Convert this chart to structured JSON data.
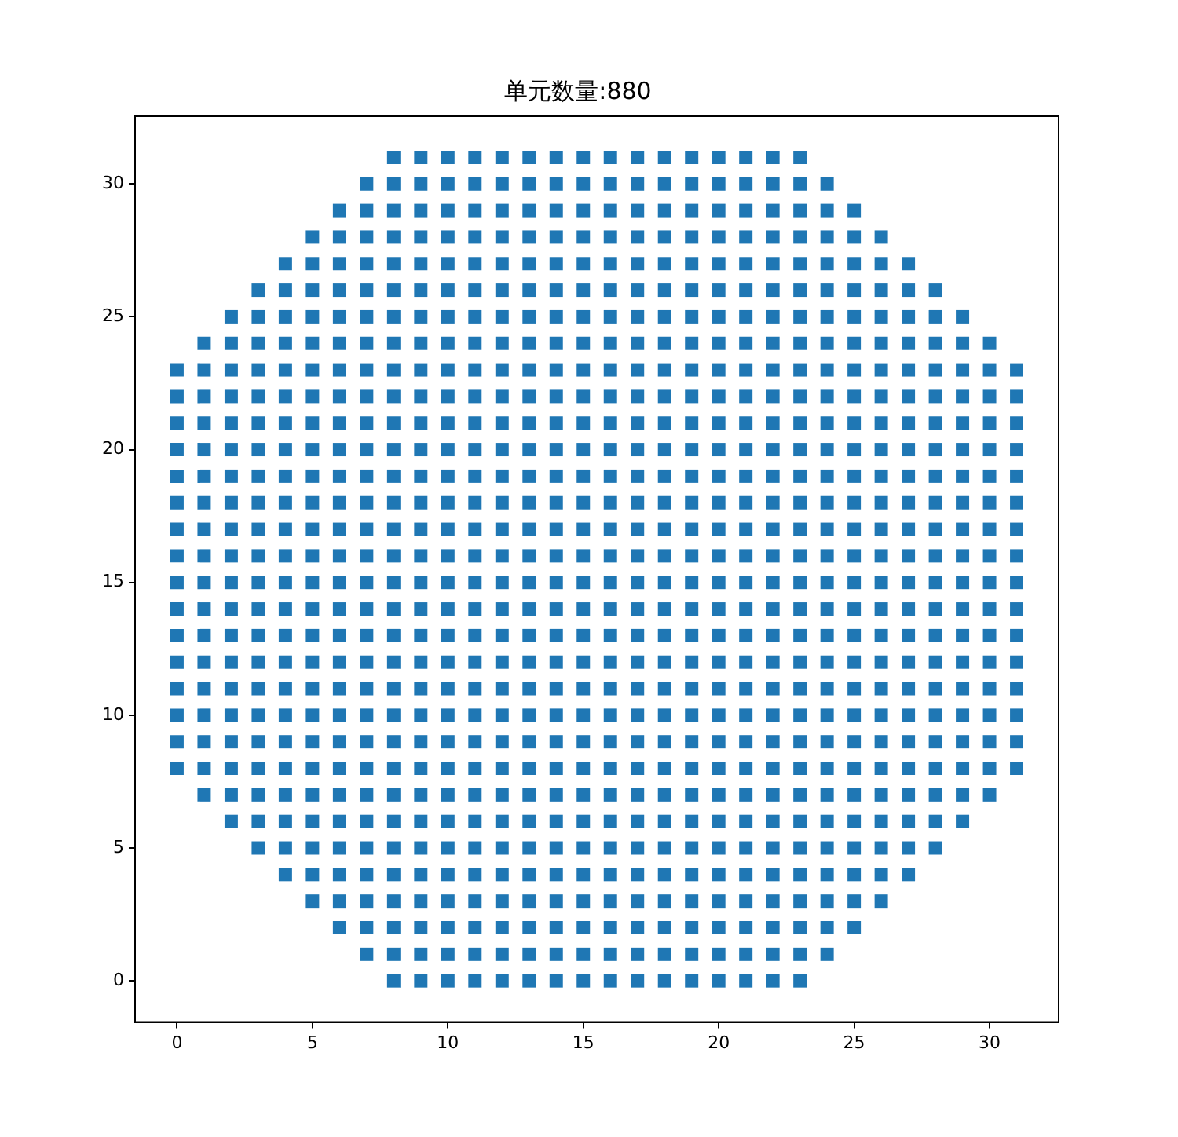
{
  "chart_data": {
    "type": "scatter",
    "title": "单元数量:880",
    "marker": "square",
    "grid": false,
    "legend": false,
    "xlim": [
      -1.55,
      32.55
    ],
    "ylim": [
      -1.55,
      32.55
    ],
    "xticks": [
      0,
      5,
      10,
      15,
      20,
      25,
      30
    ],
    "yticks": [
      0,
      5,
      10,
      15,
      20,
      25,
      30
    ],
    "series": [
      {
        "color": "#1f77b4",
        "x": [
          8,
          9,
          10,
          11,
          12,
          13,
          14,
          15,
          16,
          17,
          18,
          19,
          20,
          21,
          22,
          23
        ],
        "values": [
          0,
          0,
          0,
          0,
          0,
          0,
          0,
          0,
          0,
          0,
          0,
          0,
          0,
          0,
          0,
          0
        ]
      },
      {
        "color": "#1f77b4",
        "x": [
          7,
          8,
          9,
          10,
          11,
          12,
          13,
          14,
          15,
          16,
          17,
          18,
          19,
          20,
          21,
          22,
          23,
          24
        ],
        "values": [
          1,
          1,
          1,
          1,
          1,
          1,
          1,
          1,
          1,
          1,
          1,
          1,
          1,
          1,
          1,
          1,
          1,
          1
        ]
      },
      {
        "color": "#1f77b4",
        "x": [
          6,
          7,
          8,
          9,
          10,
          11,
          12,
          13,
          14,
          15,
          16,
          17,
          18,
          19,
          20,
          21,
          22,
          23,
          24,
          25
        ],
        "values": [
          2,
          2,
          2,
          2,
          2,
          2,
          2,
          2,
          2,
          2,
          2,
          2,
          2,
          2,
          2,
          2,
          2,
          2,
          2,
          2
        ]
      },
      {
        "color": "#1f77b4",
        "x": [
          5,
          6,
          7,
          8,
          9,
          10,
          11,
          12,
          13,
          14,
          15,
          16,
          17,
          18,
          19,
          20,
          21,
          22,
          23,
          24,
          25,
          26
        ],
        "values": [
          3,
          3,
          3,
          3,
          3,
          3,
          3,
          3,
          3,
          3,
          3,
          3,
          3,
          3,
          3,
          3,
          3,
          3,
          3,
          3,
          3,
          3
        ]
      },
      {
        "color": "#1f77b4",
        "x": [
          4,
          5,
          6,
          7,
          8,
          9,
          10,
          11,
          12,
          13,
          14,
          15,
          16,
          17,
          18,
          19,
          20,
          21,
          22,
          23,
          24,
          25,
          26,
          27
        ],
        "values": [
          4,
          4,
          4,
          4,
          4,
          4,
          4,
          4,
          4,
          4,
          4,
          4,
          4,
          4,
          4,
          4,
          4,
          4,
          4,
          4,
          4,
          4,
          4,
          4
        ]
      },
      {
        "color": "#1f77b4",
        "x": [
          3,
          4,
          5,
          6,
          7,
          8,
          9,
          10,
          11,
          12,
          13,
          14,
          15,
          16,
          17,
          18,
          19,
          20,
          21,
          22,
          23,
          24,
          25,
          26,
          27,
          28
        ],
        "values": [
          5,
          5,
          5,
          5,
          5,
          5,
          5,
          5,
          5,
          5,
          5,
          5,
          5,
          5,
          5,
          5,
          5,
          5,
          5,
          5,
          5,
          5,
          5,
          5,
          5,
          5
        ]
      },
      {
        "color": "#1f77b4",
        "x": [
          2,
          3,
          4,
          5,
          6,
          7,
          8,
          9,
          10,
          11,
          12,
          13,
          14,
          15,
          16,
          17,
          18,
          19,
          20,
          21,
          22,
          23,
          24,
          25,
          26,
          27,
          28,
          29
        ],
        "values": [
          6,
          6,
          6,
          6,
          6,
          6,
          6,
          6,
          6,
          6,
          6,
          6,
          6,
          6,
          6,
          6,
          6,
          6,
          6,
          6,
          6,
          6,
          6,
          6,
          6,
          6,
          6,
          6
        ]
      },
      {
        "color": "#1f77b4",
        "x": [
          1,
          2,
          3,
          4,
          5,
          6,
          7,
          8,
          9,
          10,
          11,
          12,
          13,
          14,
          15,
          16,
          17,
          18,
          19,
          20,
          21,
          22,
          23,
          24,
          25,
          26,
          27,
          28,
          29,
          30
        ],
        "values": [
          7,
          7,
          7,
          7,
          7,
          7,
          7,
          7,
          7,
          7,
          7,
          7,
          7,
          7,
          7,
          7,
          7,
          7,
          7,
          7,
          7,
          7,
          7,
          7,
          7,
          7,
          7,
          7,
          7,
          7
        ]
      },
      {
        "color": "#1f77b4",
        "x": [
          0,
          1,
          2,
          3,
          4,
          5,
          6,
          7,
          8,
          9,
          10,
          11,
          12,
          13,
          14,
          15,
          16,
          17,
          18,
          19,
          20,
          21,
          22,
          23,
          24,
          25,
          26,
          27,
          28,
          29,
          30,
          31
        ],
        "values": [
          8,
          8,
          8,
          8,
          8,
          8,
          8,
          8,
          8,
          8,
          8,
          8,
          8,
          8,
          8,
          8,
          8,
          8,
          8,
          8,
          8,
          8,
          8,
          8,
          8,
          8,
          8,
          8,
          8,
          8,
          8,
          8
        ]
      },
      {
        "color": "#1f77b4",
        "x": [
          0,
          1,
          2,
          3,
          4,
          5,
          6,
          7,
          8,
          9,
          10,
          11,
          12,
          13,
          14,
          15,
          16,
          17,
          18,
          19,
          20,
          21,
          22,
          23,
          24,
          25,
          26,
          27,
          28,
          29,
          30,
          31
        ],
        "values": [
          9,
          9,
          9,
          9,
          9,
          9,
          9,
          9,
          9,
          9,
          9,
          9,
          9,
          9,
          9,
          9,
          9,
          9,
          9,
          9,
          9,
          9,
          9,
          9,
          9,
          9,
          9,
          9,
          9,
          9,
          9,
          9
        ]
      },
      {
        "color": "#1f77b4",
        "x": [
          0,
          1,
          2,
          3,
          4,
          5,
          6,
          7,
          8,
          9,
          10,
          11,
          12,
          13,
          14,
          15,
          16,
          17,
          18,
          19,
          20,
          21,
          22,
          23,
          24,
          25,
          26,
          27,
          28,
          29,
          30,
          31
        ],
        "values": [
          10,
          10,
          10,
          10,
          10,
          10,
          10,
          10,
          10,
          10,
          10,
          10,
          10,
          10,
          10,
          10,
          10,
          10,
          10,
          10,
          10,
          10,
          10,
          10,
          10,
          10,
          10,
          10,
          10,
          10,
          10,
          10
        ]
      },
      {
        "color": "#1f77b4",
        "x": [
          0,
          1,
          2,
          3,
          4,
          5,
          6,
          7,
          8,
          9,
          10,
          11,
          12,
          13,
          14,
          15,
          16,
          17,
          18,
          19,
          20,
          21,
          22,
          23,
          24,
          25,
          26,
          27,
          28,
          29,
          30,
          31
        ],
        "values": [
          11,
          11,
          11,
          11,
          11,
          11,
          11,
          11,
          11,
          11,
          11,
          11,
          11,
          11,
          11,
          11,
          11,
          11,
          11,
          11,
          11,
          11,
          11,
          11,
          11,
          11,
          11,
          11,
          11,
          11,
          11,
          11
        ]
      },
      {
        "color": "#1f77b4",
        "x": [
          0,
          1,
          2,
          3,
          4,
          5,
          6,
          7,
          8,
          9,
          10,
          11,
          12,
          13,
          14,
          15,
          16,
          17,
          18,
          19,
          20,
          21,
          22,
          23,
          24,
          25,
          26,
          27,
          28,
          29,
          30,
          31
        ],
        "values": [
          12,
          12,
          12,
          12,
          12,
          12,
          12,
          12,
          12,
          12,
          12,
          12,
          12,
          12,
          12,
          12,
          12,
          12,
          12,
          12,
          12,
          12,
          12,
          12,
          12,
          12,
          12,
          12,
          12,
          12,
          12,
          12
        ]
      },
      {
        "color": "#1f77b4",
        "x": [
          0,
          1,
          2,
          3,
          4,
          5,
          6,
          7,
          8,
          9,
          10,
          11,
          12,
          13,
          14,
          15,
          16,
          17,
          18,
          19,
          20,
          21,
          22,
          23,
          24,
          25,
          26,
          27,
          28,
          29,
          30,
          31
        ],
        "values": [
          13,
          13,
          13,
          13,
          13,
          13,
          13,
          13,
          13,
          13,
          13,
          13,
          13,
          13,
          13,
          13,
          13,
          13,
          13,
          13,
          13,
          13,
          13,
          13,
          13,
          13,
          13,
          13,
          13,
          13,
          13,
          13
        ]
      },
      {
        "color": "#1f77b4",
        "x": [
          0,
          1,
          2,
          3,
          4,
          5,
          6,
          7,
          8,
          9,
          10,
          11,
          12,
          13,
          14,
          15,
          16,
          17,
          18,
          19,
          20,
          21,
          22,
          23,
          24,
          25,
          26,
          27,
          28,
          29,
          30,
          31
        ],
        "values": [
          14,
          14,
          14,
          14,
          14,
          14,
          14,
          14,
          14,
          14,
          14,
          14,
          14,
          14,
          14,
          14,
          14,
          14,
          14,
          14,
          14,
          14,
          14,
          14,
          14,
          14,
          14,
          14,
          14,
          14,
          14,
          14
        ]
      },
      {
        "color": "#1f77b4",
        "x": [
          0,
          1,
          2,
          3,
          4,
          5,
          6,
          7,
          8,
          9,
          10,
          11,
          12,
          13,
          14,
          15,
          16,
          17,
          18,
          19,
          20,
          21,
          22,
          23,
          24,
          25,
          26,
          27,
          28,
          29,
          30,
          31
        ],
        "values": [
          15,
          15,
          15,
          15,
          15,
          15,
          15,
          15,
          15,
          15,
          15,
          15,
          15,
          15,
          15,
          15,
          15,
          15,
          15,
          15,
          15,
          15,
          15,
          15,
          15,
          15,
          15,
          15,
          15,
          15,
          15,
          15
        ]
      },
      {
        "color": "#1f77b4",
        "x": [
          0,
          1,
          2,
          3,
          4,
          5,
          6,
          7,
          8,
          9,
          10,
          11,
          12,
          13,
          14,
          15,
          16,
          17,
          18,
          19,
          20,
          21,
          22,
          23,
          24,
          25,
          26,
          27,
          28,
          29,
          30,
          31
        ],
        "values": [
          16,
          16,
          16,
          16,
          16,
          16,
          16,
          16,
          16,
          16,
          16,
          16,
          16,
          16,
          16,
          16,
          16,
          16,
          16,
          16,
          16,
          16,
          16,
          16,
          16,
          16,
          16,
          16,
          16,
          16,
          16,
          16
        ]
      },
      {
        "color": "#1f77b4",
        "x": [
          0,
          1,
          2,
          3,
          4,
          5,
          6,
          7,
          8,
          9,
          10,
          11,
          12,
          13,
          14,
          15,
          16,
          17,
          18,
          19,
          20,
          21,
          22,
          23,
          24,
          25,
          26,
          27,
          28,
          29,
          30,
          31
        ],
        "values": [
          17,
          17,
          17,
          17,
          17,
          17,
          17,
          17,
          17,
          17,
          17,
          17,
          17,
          17,
          17,
          17,
          17,
          17,
          17,
          17,
          17,
          17,
          17,
          17,
          17,
          17,
          17,
          17,
          17,
          17,
          17,
          17
        ]
      },
      {
        "color": "#1f77b4",
        "x": [
          0,
          1,
          2,
          3,
          4,
          5,
          6,
          7,
          8,
          9,
          10,
          11,
          12,
          13,
          14,
          15,
          16,
          17,
          18,
          19,
          20,
          21,
          22,
          23,
          24,
          25,
          26,
          27,
          28,
          29,
          30,
          31
        ],
        "values": [
          18,
          18,
          18,
          18,
          18,
          18,
          18,
          18,
          18,
          18,
          18,
          18,
          18,
          18,
          18,
          18,
          18,
          18,
          18,
          18,
          18,
          18,
          18,
          18,
          18,
          18,
          18,
          18,
          18,
          18,
          18,
          18
        ]
      },
      {
        "color": "#1f77b4",
        "x": [
          0,
          1,
          2,
          3,
          4,
          5,
          6,
          7,
          8,
          9,
          10,
          11,
          12,
          13,
          14,
          15,
          16,
          17,
          18,
          19,
          20,
          21,
          22,
          23,
          24,
          25,
          26,
          27,
          28,
          29,
          30,
          31
        ],
        "values": [
          19,
          19,
          19,
          19,
          19,
          19,
          19,
          19,
          19,
          19,
          19,
          19,
          19,
          19,
          19,
          19,
          19,
          19,
          19,
          19,
          19,
          19,
          19,
          19,
          19,
          19,
          19,
          19,
          19,
          19,
          19,
          19
        ]
      },
      {
        "color": "#1f77b4",
        "x": [
          0,
          1,
          2,
          3,
          4,
          5,
          6,
          7,
          8,
          9,
          10,
          11,
          12,
          13,
          14,
          15,
          16,
          17,
          18,
          19,
          20,
          21,
          22,
          23,
          24,
          25,
          26,
          27,
          28,
          29,
          30,
          31
        ],
        "values": [
          20,
          20,
          20,
          20,
          20,
          20,
          20,
          20,
          20,
          20,
          20,
          20,
          20,
          20,
          20,
          20,
          20,
          20,
          20,
          20,
          20,
          20,
          20,
          20,
          20,
          20,
          20,
          20,
          20,
          20,
          20,
          20
        ]
      },
      {
        "color": "#1f77b4",
        "x": [
          0,
          1,
          2,
          3,
          4,
          5,
          6,
          7,
          8,
          9,
          10,
          11,
          12,
          13,
          14,
          15,
          16,
          17,
          18,
          19,
          20,
          21,
          22,
          23,
          24,
          25,
          26,
          27,
          28,
          29,
          30,
          31
        ],
        "values": [
          21,
          21,
          21,
          21,
          21,
          21,
          21,
          21,
          21,
          21,
          21,
          21,
          21,
          21,
          21,
          21,
          21,
          21,
          21,
          21,
          21,
          21,
          21,
          21,
          21,
          21,
          21,
          21,
          21,
          21,
          21,
          21
        ]
      },
      {
        "color": "#1f77b4",
        "x": [
          0,
          1,
          2,
          3,
          4,
          5,
          6,
          7,
          8,
          9,
          10,
          11,
          12,
          13,
          14,
          15,
          16,
          17,
          18,
          19,
          20,
          21,
          22,
          23,
          24,
          25,
          26,
          27,
          28,
          29,
          30,
          31
        ],
        "values": [
          22,
          22,
          22,
          22,
          22,
          22,
          22,
          22,
          22,
          22,
          22,
          22,
          22,
          22,
          22,
          22,
          22,
          22,
          22,
          22,
          22,
          22,
          22,
          22,
          22,
          22,
          22,
          22,
          22,
          22,
          22,
          22
        ]
      },
      {
        "color": "#1f77b4",
        "x": [
          0,
          1,
          2,
          3,
          4,
          5,
          6,
          7,
          8,
          9,
          10,
          11,
          12,
          13,
          14,
          15,
          16,
          17,
          18,
          19,
          20,
          21,
          22,
          23,
          24,
          25,
          26,
          27,
          28,
          29,
          30,
          31
        ],
        "values": [
          23,
          23,
          23,
          23,
          23,
          23,
          23,
          23,
          23,
          23,
          23,
          23,
          23,
          23,
          23,
          23,
          23,
          23,
          23,
          23,
          23,
          23,
          23,
          23,
          23,
          23,
          23,
          23,
          23,
          23,
          23,
          23
        ]
      },
      {
        "color": "#1f77b4",
        "x": [
          1,
          2,
          3,
          4,
          5,
          6,
          7,
          8,
          9,
          10,
          11,
          12,
          13,
          14,
          15,
          16,
          17,
          18,
          19,
          20,
          21,
          22,
          23,
          24,
          25,
          26,
          27,
          28,
          29,
          30
        ],
        "values": [
          24,
          24,
          24,
          24,
          24,
          24,
          24,
          24,
          24,
          24,
          24,
          24,
          24,
          24,
          24,
          24,
          24,
          24,
          24,
          24,
          24,
          24,
          24,
          24,
          24,
          24,
          24,
          24,
          24,
          24
        ]
      },
      {
        "color": "#1f77b4",
        "x": [
          2,
          3,
          4,
          5,
          6,
          7,
          8,
          9,
          10,
          11,
          12,
          13,
          14,
          15,
          16,
          17,
          18,
          19,
          20,
          21,
          22,
          23,
          24,
          25,
          26,
          27,
          28,
          29
        ],
        "values": [
          25,
          25,
          25,
          25,
          25,
          25,
          25,
          25,
          25,
          25,
          25,
          25,
          25,
          25,
          25,
          25,
          25,
          25,
          25,
          25,
          25,
          25,
          25,
          25,
          25,
          25,
          25,
          25
        ]
      },
      {
        "color": "#1f77b4",
        "x": [
          3,
          4,
          5,
          6,
          7,
          8,
          9,
          10,
          11,
          12,
          13,
          14,
          15,
          16,
          17,
          18,
          19,
          20,
          21,
          22,
          23,
          24,
          25,
          26,
          27,
          28
        ],
        "values": [
          26,
          26,
          26,
          26,
          26,
          26,
          26,
          26,
          26,
          26,
          26,
          26,
          26,
          26,
          26,
          26,
          26,
          26,
          26,
          26,
          26,
          26,
          26,
          26,
          26,
          26
        ]
      },
      {
        "color": "#1f77b4",
        "x": [
          4,
          5,
          6,
          7,
          8,
          9,
          10,
          11,
          12,
          13,
          14,
          15,
          16,
          17,
          18,
          19,
          20,
          21,
          22,
          23,
          24,
          25,
          26,
          27
        ],
        "values": [
          27,
          27,
          27,
          27,
          27,
          27,
          27,
          27,
          27,
          27,
          27,
          27,
          27,
          27,
          27,
          27,
          27,
          27,
          27,
          27,
          27,
          27,
          27,
          27
        ]
      },
      {
        "color": "#1f77b4",
        "x": [
          5,
          6,
          7,
          8,
          9,
          10,
          11,
          12,
          13,
          14,
          15,
          16,
          17,
          18,
          19,
          20,
          21,
          22,
          23,
          24,
          25,
          26
        ],
        "values": [
          28,
          28,
          28,
          28,
          28,
          28,
          28,
          28,
          28,
          28,
          28,
          28,
          28,
          28,
          28,
          28,
          28,
          28,
          28,
          28,
          28,
          28
        ]
      },
      {
        "color": "#1f77b4",
        "x": [
          6,
          7,
          8,
          9,
          10,
          11,
          12,
          13,
          14,
          15,
          16,
          17,
          18,
          19,
          20,
          21,
          22,
          23,
          24,
          25
        ],
        "values": [
          29,
          29,
          29,
          29,
          29,
          29,
          29,
          29,
          29,
          29,
          29,
          29,
          29,
          29,
          29,
          29,
          29,
          29,
          29,
          29
        ]
      },
      {
        "color": "#1f77b4",
        "x": [
          7,
          8,
          9,
          10,
          11,
          12,
          13,
          14,
          15,
          16,
          17,
          18,
          19,
          20,
          21,
          22,
          23,
          24
        ],
        "values": [
          30,
          30,
          30,
          30,
          30,
          30,
          30,
          30,
          30,
          30,
          30,
          30,
          30,
          30,
          30,
          30,
          30,
          30
        ]
      },
      {
        "color": "#1f77b4",
        "x": [
          8,
          9,
          10,
          11,
          12,
          13,
          14,
          15,
          16,
          17,
          18,
          19,
          20,
          21,
          22,
          23
        ],
        "values": [
          31,
          31,
          31,
          31,
          31,
          31,
          31,
          31,
          31,
          31,
          31,
          31,
          31,
          31,
          31,
          31
        ]
      }
    ]
  }
}
